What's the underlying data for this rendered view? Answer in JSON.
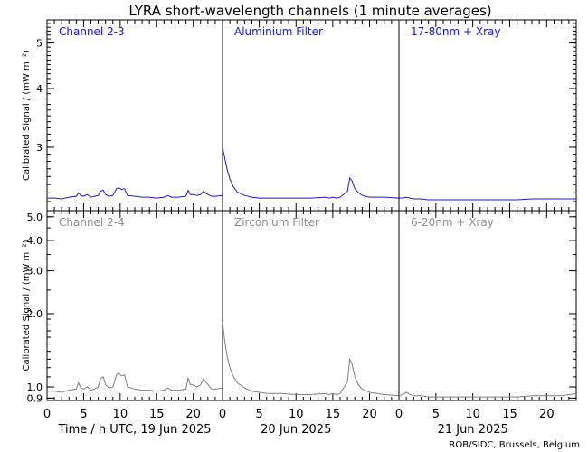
{
  "title": "LYRA short-wavelength channels (1 minute averages)",
  "footer": "ROB/SIDC, Brussels, Belgium",
  "colors": {
    "top_series": "#1a1acc",
    "bottom_series": "#7f7f7f",
    "top_label": "#1a1acc",
    "bottom_label": "#8c8c8c",
    "axes": "#000000"
  },
  "chart_data": [
    {
      "type": "line",
      "row": "top",
      "ylabel": "Calibrated Signal / (mW m⁻²)",
      "ylim": [
        2.2,
        5.6
      ],
      "yscale": "log",
      "ytick_labels": [
        "3",
        "4",
        "5"
      ],
      "ytick_values": [
        3,
        4,
        5
      ],
      "panels": [
        {
          "title": "Channel 2-3",
          "day_label": "Time / h UTC, 19 Jun 2025",
          "xlim": [
            0,
            24
          ],
          "series": [
            {
              "x": [
                0,
                1,
                2,
                3,
                4,
                4.3,
                4.6,
                5,
                5.5,
                6,
                6.5,
                7,
                7.3,
                7.7,
                8,
                8.5,
                9,
                9.5,
                9.8,
                10.2,
                10.6,
                11,
                12,
                13,
                14,
                15,
                16,
                16.5,
                17,
                18,
                19,
                19.3,
                19.6,
                20,
                20.5,
                21,
                21.4,
                21.8,
                22.5,
                23,
                24
              ],
              "y": [
                2.34,
                2.34,
                2.33,
                2.35,
                2.36,
                2.4,
                2.37,
                2.36,
                2.38,
                2.35,
                2.36,
                2.37,
                2.42,
                2.43,
                2.38,
                2.36,
                2.37,
                2.45,
                2.46,
                2.44,
                2.45,
                2.37,
                2.36,
                2.35,
                2.35,
                2.34,
                2.35,
                2.37,
                2.35,
                2.35,
                2.36,
                2.43,
                2.38,
                2.38,
                2.37,
                2.38,
                2.42,
                2.39,
                2.36,
                2.36,
                2.37
              ]
            }
          ]
        },
        {
          "title": "Aluminium Filter",
          "day_label": "20 Jun 2025",
          "xlim": [
            0,
            24
          ],
          "series": [
            {
              "x": [
                0,
                0.3,
                0.6,
                1,
                1.5,
                2,
                3,
                4,
                5,
                6,
                8,
                10,
                12,
                14,
                14.5,
                15,
                15.5,
                16,
                17,
                17.3,
                17.6,
                18,
                18.5,
                19,
                20,
                22,
                24
              ],
              "y": [
                3.0,
                2.85,
                2.7,
                2.57,
                2.47,
                2.41,
                2.37,
                2.35,
                2.34,
                2.34,
                2.34,
                2.34,
                2.34,
                2.35,
                2.34,
                2.35,
                2.34,
                2.35,
                2.42,
                2.58,
                2.55,
                2.45,
                2.4,
                2.37,
                2.35,
                2.35,
                2.34
              ]
            }
          ]
        },
        {
          "title": "17-80nm + Xray",
          "day_label": "21 Jun 2025",
          "xlim": [
            0,
            24
          ],
          "series": [
            {
              "x": [
                0,
                0.5,
                1,
                1.5,
                2,
                3,
                4,
                6,
                8,
                10,
                12,
                14,
                16,
                18,
                20,
                22,
                24
              ],
              "y": [
                2.34,
                2.34,
                2.35,
                2.34,
                2.33,
                2.33,
                2.32,
                2.32,
                2.32,
                2.32,
                2.32,
                2.32,
                2.32,
                2.33,
                2.33,
                2.33,
                2.33
              ]
            }
          ]
        }
      ]
    },
    {
      "type": "line",
      "row": "bottom",
      "ylabel": "Calibrated Signal / (mW m⁻²)",
      "ylim": [
        0.88,
        5.3
      ],
      "yscale": "log",
      "ytick_labels": [
        "0.9",
        "1.0",
        "2.0",
        "3.0",
        "4.0",
        "5.0"
      ],
      "ytick_values": [
        0.9,
        1.0,
        2.0,
        3.0,
        4.0,
        5.0
      ],
      "panels": [
        {
          "title": "Channel 2-4",
          "xlim": [
            0,
            24
          ],
          "series": [
            {
              "x": [
                0,
                1,
                2,
                3,
                4,
                4.3,
                4.6,
                5,
                5.5,
                6,
                6.5,
                7,
                7.3,
                7.7,
                8,
                8.5,
                9,
                9.5,
                9.8,
                10.2,
                10.6,
                11,
                12,
                13,
                14,
                15,
                16,
                16.5,
                17,
                18,
                19,
                19.3,
                19.6,
                20,
                20.5,
                21,
                21.4,
                21.8,
                22.5,
                23,
                24
              ],
              "y": [
                0.96,
                0.96,
                0.95,
                0.97,
                0.98,
                1.04,
                0.99,
                0.98,
                1.0,
                0.97,
                0.98,
                1.0,
                1.08,
                1.1,
                1.02,
                0.99,
                1.0,
                1.12,
                1.14,
                1.11,
                1.12,
                1.0,
                0.98,
                0.97,
                0.97,
                0.96,
                0.97,
                0.99,
                0.97,
                0.97,
                0.98,
                1.09,
                1.02,
                1.02,
                1.0,
                1.02,
                1.08,
                1.04,
                0.98,
                0.98,
                0.99
              ]
            }
          ]
        },
        {
          "title": "Zirconium Filter",
          "xlim": [
            0,
            24
          ],
          "series": [
            {
              "x": [
                0,
                0.3,
                0.6,
                1,
                1.5,
                2,
                3,
                4,
                5,
                6,
                8,
                10,
                12,
                14,
                14.5,
                15,
                15.5,
                16,
                17,
                17.3,
                17.6,
                18,
                18.5,
                19,
                20,
                22,
                24
              ],
              "y": [
                1.85,
                1.55,
                1.35,
                1.2,
                1.1,
                1.04,
                0.99,
                0.96,
                0.95,
                0.94,
                0.94,
                0.93,
                0.93,
                0.94,
                0.93,
                0.94,
                0.93,
                0.94,
                1.05,
                1.3,
                1.25,
                1.1,
                1.02,
                0.98,
                0.95,
                0.93,
                0.92
              ]
            }
          ]
        },
        {
          "title": "6-20nm + Xray",
          "xlim": [
            0,
            24
          ],
          "series": [
            {
              "x": [
                0,
                0.5,
                1,
                1.5,
                2,
                3,
                4,
                6,
                8,
                10,
                12,
                14,
                16,
                18,
                20,
                22,
                23,
                24
              ],
              "y": [
                0.92,
                0.93,
                0.95,
                0.93,
                0.92,
                0.92,
                0.91,
                0.91,
                0.91,
                0.91,
                0.91,
                0.91,
                0.91,
                0.92,
                0.92,
                0.92,
                0.93,
                0.94
              ]
            }
          ]
        }
      ],
      "xtick_labels": [
        "0",
        "5",
        "10",
        "15",
        "20"
      ],
      "xtick_values": [
        0,
        5,
        10,
        15,
        20
      ]
    }
  ]
}
